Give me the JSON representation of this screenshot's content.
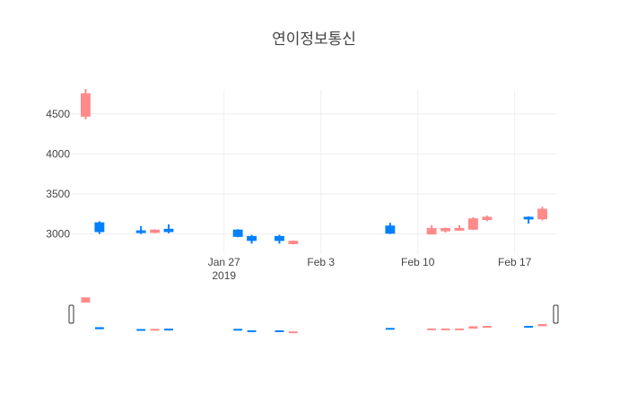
{
  "chart_data": {
    "type": "candlestick",
    "title": "연이정보통신",
    "xlabel": "",
    "ylabel": "",
    "ylim": [
      2750,
      4800
    ],
    "x_range": [
      "2019-01-16",
      "2019-02-20"
    ],
    "y_ticks": [
      3000,
      3500,
      4000,
      4500
    ],
    "y_tick_labels": [
      "3000",
      "3500",
      "4000",
      "4500"
    ],
    "x_ticks": [
      "2019-01-27",
      "2019-02-03",
      "2019-02-10",
      "2019-02-17"
    ],
    "x_tick_labels": [
      "Jan 27",
      "Feb 3",
      "Feb 10",
      "Feb 17"
    ],
    "x_tick_year": "2019",
    "grid": true,
    "legend": false,
    "rangeslider": true,
    "colors": {
      "increasing": "#FF8A8A",
      "decreasing": "#0080FF",
      "grid": "#eeeeee",
      "text": "#444444"
    },
    "candles": [
      {
        "date": "2019-01-17",
        "open": 4470,
        "high": 4810,
        "low": 4430,
        "close": 4750
      },
      {
        "date": "2019-01-18",
        "open": 3140,
        "high": 3160,
        "low": 3000,
        "close": 3030
      },
      {
        "date": "2019-01-21",
        "open": 3040,
        "high": 3100,
        "low": 3000,
        "close": 3020
      },
      {
        "date": "2019-01-22",
        "open": 3020,
        "high": 3060,
        "low": 3010,
        "close": 3050
      },
      {
        "date": "2019-01-23",
        "open": 3060,
        "high": 3120,
        "low": 3010,
        "close": 3030
      },
      {
        "date": "2019-01-28",
        "open": 3050,
        "high": 3060,
        "low": 2960,
        "close": 2970
      },
      {
        "date": "2019-01-29",
        "open": 2970,
        "high": 2990,
        "low": 2880,
        "close": 2920
      },
      {
        "date": "2019-01-31",
        "open": 2970,
        "high": 2990,
        "low": 2880,
        "close": 2920
      },
      {
        "date": "2019-02-01",
        "open": 2880,
        "high": 2920,
        "low": 2870,
        "close": 2910
      },
      {
        "date": "2019-02-08",
        "open": 3100,
        "high": 3140,
        "low": 3000,
        "close": 3010
      },
      {
        "date": "2019-02-11",
        "open": 3000,
        "high": 3110,
        "low": 3000,
        "close": 3070
      },
      {
        "date": "2019-02-12",
        "open": 3040,
        "high": 3080,
        "low": 3020,
        "close": 3070
      },
      {
        "date": "2019-02-13",
        "open": 3050,
        "high": 3110,
        "low": 3040,
        "close": 3070
      },
      {
        "date": "2019-02-14",
        "open": 3060,
        "high": 3210,
        "low": 3050,
        "close": 3190
      },
      {
        "date": "2019-02-15",
        "open": 3180,
        "high": 3230,
        "low": 3160,
        "close": 3210
      },
      {
        "date": "2019-02-18",
        "open": 3210,
        "high": 3220,
        "low": 3130,
        "close": 3190
      },
      {
        "date": "2019-02-19",
        "open": 3190,
        "high": 3340,
        "low": 3170,
        "close": 3310
      }
    ]
  }
}
